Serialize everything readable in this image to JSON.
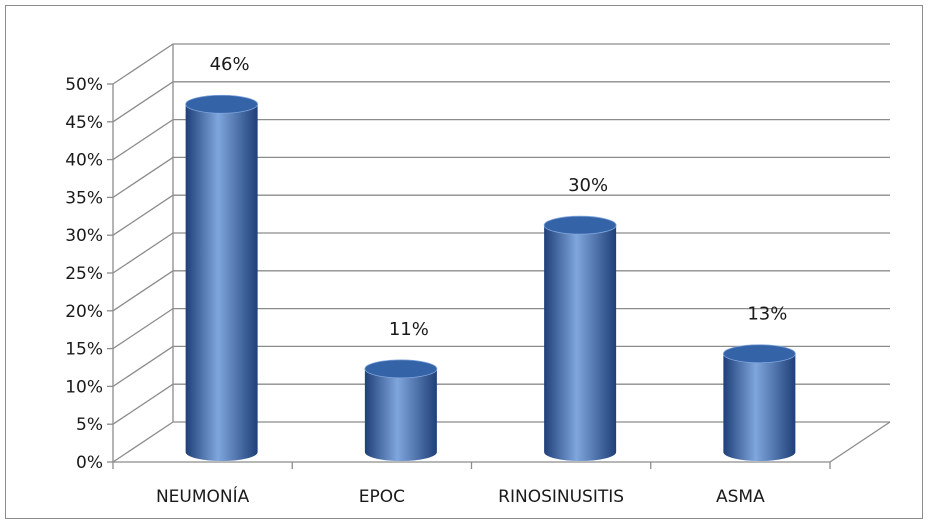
{
  "chart_data": {
    "type": "bar",
    "style": "3d-cylinder",
    "categories": [
      "NEUMONÍA",
      "EPOC",
      "RINOSINUSITIS",
      "ASMA"
    ],
    "values": [
      46,
      11,
      30,
      13
    ],
    "data_labels": [
      "46%",
      "11%",
      "30%",
      "13%"
    ],
    "title": "",
    "xlabel": "",
    "ylabel": "",
    "ylim": [
      0,
      50
    ],
    "yticks": [
      "0%",
      "5%",
      "10%",
      "15%",
      "20%",
      "25%",
      "30%",
      "35%",
      "40%",
      "45%",
      "50%"
    ],
    "grid": true,
    "legend": "none",
    "colors": {
      "bar": "#4a76bb",
      "bar_dark": "#1f3f78",
      "bar_light": "#7fa6dd",
      "bar_top": "#3563a8",
      "grid": "#8c8c8c",
      "axis": "#8c8c8c",
      "frame": "#8c8c8c"
    }
  }
}
